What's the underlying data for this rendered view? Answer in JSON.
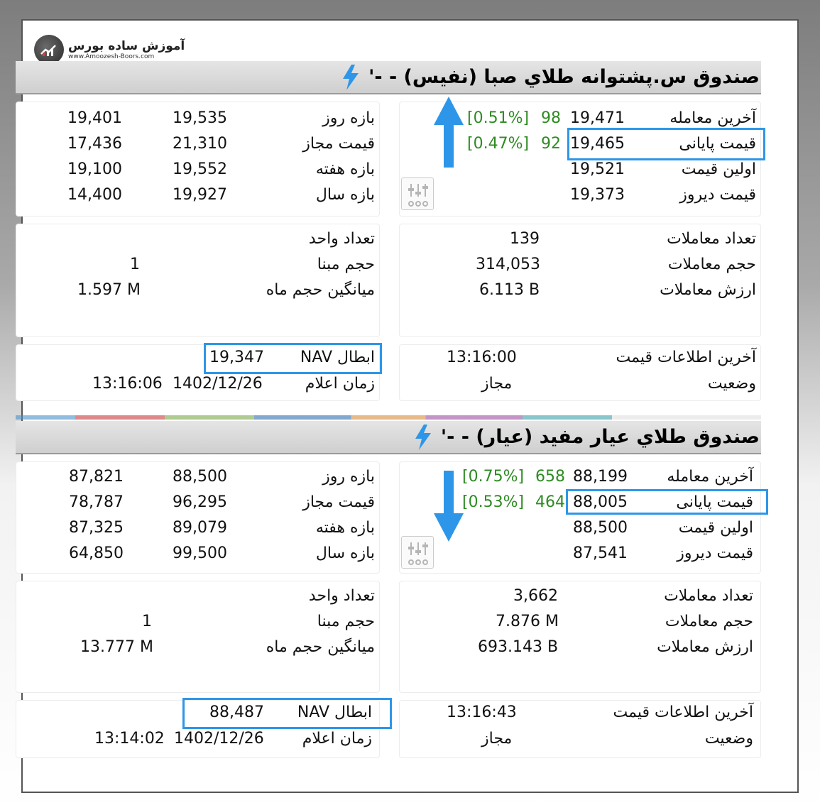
{
  "brand": {
    "name": "آموزش ساده بورس",
    "url": "www.Amoozesh-Boors.com"
  },
  "accent_color": "#2e96e8",
  "positive_color": "#2e8b22",
  "funds": [
    {
      "title": "صندوق س.پشتوانه طلاي صبا (نفيس) - -'",
      "arrow": "up",
      "price": {
        "last_trade": {
          "label": "آخرین معامله",
          "value": "19,471",
          "change": "98",
          "pct": "[0.51%]"
        },
        "closing": {
          "label": "قیمت پایانی",
          "value": "19,465",
          "change": "92",
          "pct": "[0.47%]"
        },
        "first": {
          "label": "اولین قیمت",
          "value": "19,521"
        },
        "yesterday": {
          "label": "قیمت دیروز",
          "value": "19,373"
        }
      },
      "ranges": {
        "day": {
          "label": "بازه روز",
          "high": "19,535",
          "low": "19,401"
        },
        "allowed": {
          "label": "قیمت مجاز",
          "high": "21,310",
          "low": "17,436"
        },
        "week": {
          "label": "بازه هفته",
          "high": "19,552",
          "low": "19,100"
        },
        "year": {
          "label": "بازه سال",
          "high": "19,927",
          "low": "14,400"
        }
      },
      "trades": {
        "count": {
          "label": "تعداد معاملات",
          "value": "139"
        },
        "volume": {
          "label": "حجم معاملات",
          "value": "314,053"
        },
        "value": {
          "label": "ارزش معاملات",
          "value": "6.113 B"
        }
      },
      "units": {
        "units": {
          "label": "تعداد واحد",
          "value": ""
        },
        "base": {
          "label": "حجم مبنا",
          "value": "1"
        },
        "avg": {
          "label": "میانگین حجم ماه",
          "value": "1.597 M"
        }
      },
      "info": {
        "last_info": {
          "label": "آخرین اطلاعات قیمت",
          "value": "13:16:00"
        },
        "status": {
          "label": "وضعیت",
          "value": "مجاز"
        },
        "nav": {
          "label": "NAV ابطال",
          "value": "19,347"
        },
        "announce": {
          "label": "زمان اعلام",
          "date": "1402/12/26",
          "time": "13:16:06"
        }
      }
    },
    {
      "title": "صندوق طلاي عيار مفيد (عيار) - -'",
      "arrow": "down",
      "price": {
        "last_trade": {
          "label": "آخرین معامله",
          "value": "88,199",
          "change": "658",
          "pct": "[0.75%]"
        },
        "closing": {
          "label": "قیمت پایانی",
          "value": "88,005",
          "change": "464",
          "pct": "[0.53%]"
        },
        "first": {
          "label": "اولین قیمت",
          "value": "88,500"
        },
        "yesterday": {
          "label": "قیمت دیروز",
          "value": "87,541"
        }
      },
      "ranges": {
        "day": {
          "label": "بازه روز",
          "high": "88,500",
          "low": "87,821"
        },
        "allowed": {
          "label": "قیمت مجاز",
          "high": "96,295",
          "low": "78,787"
        },
        "week": {
          "label": "بازه هفته",
          "high": "89,079",
          "low": "87,325"
        },
        "year": {
          "label": "بازه سال",
          "high": "99,500",
          "low": "64,850"
        }
      },
      "trades": {
        "count": {
          "label": "تعداد معاملات",
          "value": "3,662"
        },
        "volume": {
          "label": "حجم معاملات",
          "value": "7.876 M"
        },
        "value": {
          "label": "ارزش معاملات",
          "value": "693.143 B"
        }
      },
      "units": {
        "units": {
          "label": "تعداد واحد",
          "value": ""
        },
        "base": {
          "label": "حجم مبنا",
          "value": "1"
        },
        "avg": {
          "label": "میانگین حجم ماه",
          "value": "13.777 M"
        }
      },
      "info": {
        "last_info": {
          "label": "آخرین اطلاعات قیمت",
          "value": "13:16:43"
        },
        "status": {
          "label": "وضعیت",
          "value": "مجاز"
        },
        "nav": {
          "label": "NAV ابطال",
          "value": "88,487"
        },
        "announce": {
          "label": "زمان اعلام",
          "date": "1402/12/26",
          "time": "13:14:02"
        }
      }
    }
  ]
}
